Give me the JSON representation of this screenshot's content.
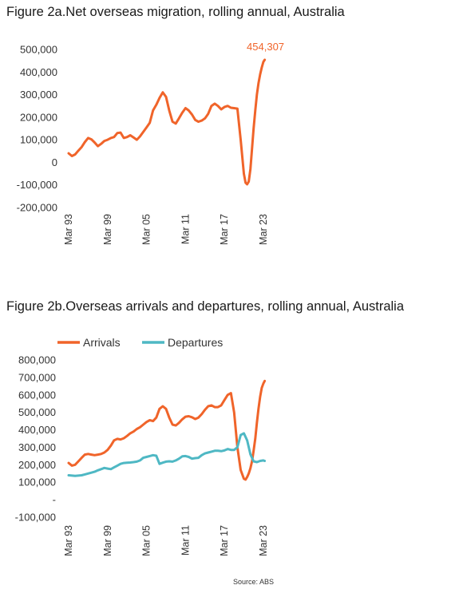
{
  "chart_data": [
    {
      "type": "line",
      "title": "Figure 2a.Net overseas migration, rolling annual, Australia",
      "ylim": [
        -200000,
        500000
      ],
      "y_ticks": [
        500000,
        400000,
        300000,
        200000,
        100000,
        0,
        -100000,
        -200000
      ],
      "y_tick_labels": [
        "500,000",
        "400,000",
        "300,000",
        "200,000",
        "100,000",
        "0",
        "-100,000",
        "-200,000"
      ],
      "x_range": [
        1993.0,
        2023.5
      ],
      "x_ticks": [
        1993,
        1999,
        2005,
        2011,
        2017,
        2023
      ],
      "x_tick_labels": [
        "Mar 93",
        "Mar 99",
        "Mar 05",
        "Mar 11",
        "Mar 17",
        "Mar 23"
      ],
      "grid": false,
      "annotation": {
        "text": "454,307",
        "x": 2023.2,
        "y": 454307
      },
      "series": [
        {
          "color": "#f0642a",
          "x": [
            1993.0,
            1993.5,
            1994.0,
            1994.5,
            1995.0,
            1995.5,
            1996.0,
            1996.5,
            1997.0,
            1997.5,
            1998.0,
            1998.5,
            1999.0,
            1999.5,
            2000.0,
            2000.5,
            2001.0,
            2001.5,
            2002.0,
            2002.5,
            2003.0,
            2003.5,
            2004.0,
            2004.5,
            2005.0,
            2005.5,
            2006.0,
            2006.5,
            2007.0,
            2007.5,
            2008.0,
            2008.5,
            2009.0,
            2009.5,
            2010.0,
            2010.5,
            2011.0,
            2011.5,
            2012.0,
            2012.5,
            2013.0,
            2013.5,
            2014.0,
            2014.5,
            2015.0,
            2015.5,
            2016.0,
            2016.5,
            2017.0,
            2017.5,
            2018.0,
            2018.5,
            2019.0,
            2019.5,
            2020.0,
            2020.25,
            2020.5,
            2020.75,
            2021.0,
            2021.25,
            2021.5,
            2021.75,
            2022.0,
            2022.25,
            2022.5,
            2022.75,
            2023.0,
            2023.2
          ],
          "y": [
            40000,
            28000,
            35000,
            52000,
            68000,
            90000,
            108000,
            102000,
            88000,
            72000,
            82000,
            95000,
            100000,
            108000,
            112000,
            130000,
            132000,
            108000,
            112000,
            120000,
            110000,
            100000,
            115000,
            135000,
            155000,
            175000,
            230000,
            255000,
            285000,
            310000,
            290000,
            230000,
            180000,
            172000,
            195000,
            220000,
            240000,
            230000,
            212000,
            188000,
            180000,
            185000,
            195000,
            215000,
            250000,
            260000,
            250000,
            235000,
            245000,
            250000,
            242000,
            240000,
            238000,
            100000,
            -50000,
            -90000,
            -97000,
            -85000,
            -30000,
            60000,
            150000,
            230000,
            300000,
            350000,
            390000,
            420000,
            445000,
            454307
          ]
        }
      ]
    },
    {
      "type": "line",
      "title": "Figure 2b.Overseas arrivals and departures, rolling annual, Australia",
      "ylim": [
        -100000,
        800000
      ],
      "y_ticks": [
        800000,
        700000,
        600000,
        500000,
        400000,
        300000,
        200000,
        100000,
        0,
        -100000
      ],
      "y_tick_labels": [
        "800,000",
        "700,000",
        "600,000",
        "500,000",
        "400,000",
        "300,000",
        "200,000",
        "100,000",
        "-",
        "-100,000"
      ],
      "x_range": [
        1993.0,
        2023.5
      ],
      "x_ticks": [
        1993,
        1999,
        2005,
        2011,
        2017,
        2023
      ],
      "x_tick_labels": [
        "Mar 93",
        "Mar 99",
        "Mar 05",
        "Mar 11",
        "Mar 17",
        "Mar 23"
      ],
      "grid": false,
      "legend": "top",
      "source": "Source: ABS",
      "series": [
        {
          "name": "Arrivals",
          "color": "#f0642a",
          "x": [
            1993.0,
            1993.5,
            1994.0,
            1994.5,
            1995.0,
            1995.5,
            1996.0,
            1996.5,
            1997.0,
            1997.5,
            1998.0,
            1998.5,
            1999.0,
            1999.5,
            2000.0,
            2000.5,
            2001.0,
            2001.5,
            2002.0,
            2002.5,
            2003.0,
            2003.5,
            2004.0,
            2004.5,
            2005.0,
            2005.5,
            2006.0,
            2006.5,
            2007.0,
            2007.5,
            2008.0,
            2008.5,
            2009.0,
            2009.5,
            2010.0,
            2010.5,
            2011.0,
            2011.5,
            2012.0,
            2012.5,
            2013.0,
            2013.5,
            2014.0,
            2014.5,
            2015.0,
            2015.5,
            2016.0,
            2016.5,
            2017.0,
            2017.5,
            2018.0,
            2018.5,
            2019.0,
            2019.5,
            2020.0,
            2020.25,
            2020.5,
            2020.75,
            2021.0,
            2021.25,
            2021.5,
            2021.75,
            2022.0,
            2022.25,
            2022.5,
            2022.75,
            2023.0,
            2023.2
          ],
          "y": [
            210000,
            195000,
            200000,
            220000,
            240000,
            258000,
            262000,
            258000,
            255000,
            258000,
            262000,
            270000,
            285000,
            310000,
            340000,
            348000,
            345000,
            352000,
            365000,
            380000,
            390000,
            405000,
            415000,
            430000,
            445000,
            455000,
            450000,
            470000,
            520000,
            535000,
            520000,
            470000,
            430000,
            425000,
            440000,
            460000,
            475000,
            478000,
            472000,
            462000,
            470000,
            490000,
            515000,
            535000,
            540000,
            530000,
            530000,
            540000,
            570000,
            600000,
            610000,
            500000,
            300000,
            170000,
            120000,
            115000,
            130000,
            150000,
            180000,
            220000,
            280000,
            350000,
            440000,
            520000,
            590000,
            640000,
            665000,
            680000
          ]
        },
        {
          "name": "Departures",
          "color": "#4fb8c4",
          "x": [
            1993.0,
            1993.5,
            1994.0,
            1994.5,
            1995.0,
            1995.5,
            1996.0,
            1996.5,
            1997.0,
            1997.5,
            1998.0,
            1998.5,
            1999.0,
            1999.5,
            2000.0,
            2000.5,
            2001.0,
            2001.5,
            2002.0,
            2002.5,
            2003.0,
            2003.5,
            2004.0,
            2004.5,
            2005.0,
            2005.5,
            2006.0,
            2006.5,
            2007.0,
            2007.5,
            2008.0,
            2008.5,
            2009.0,
            2009.5,
            2010.0,
            2010.5,
            2011.0,
            2011.5,
            2012.0,
            2012.5,
            2013.0,
            2013.5,
            2014.0,
            2014.5,
            2015.0,
            2015.5,
            2016.0,
            2016.5,
            2017.0,
            2017.5,
            2018.0,
            2018.5,
            2019.0,
            2019.5,
            2020.0,
            2020.5,
            2021.0,
            2021.5,
            2022.0,
            2022.5,
            2023.0,
            2023.2
          ],
          "y": [
            140000,
            138000,
            136000,
            138000,
            140000,
            145000,
            150000,
            155000,
            160000,
            168000,
            175000,
            182000,
            178000,
            175000,
            185000,
            195000,
            205000,
            210000,
            212000,
            213000,
            215000,
            218000,
            225000,
            240000,
            245000,
            250000,
            255000,
            252000,
            205000,
            212000,
            218000,
            220000,
            218000,
            225000,
            235000,
            248000,
            250000,
            245000,
            235000,
            238000,
            240000,
            255000,
            265000,
            270000,
            275000,
            280000,
            280000,
            278000,
            282000,
            290000,
            285000,
            285000,
            300000,
            370000,
            380000,
            340000,
            260000,
            220000,
            215000,
            222000,
            225000,
            222000
          ]
        }
      ]
    }
  ]
}
